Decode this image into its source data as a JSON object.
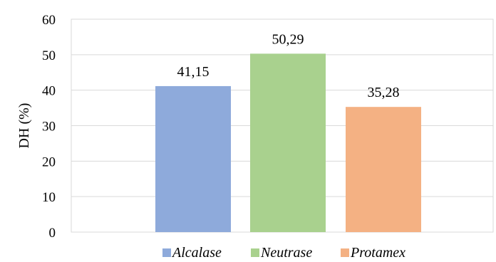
{
  "chart_data": {
    "type": "bar",
    "categories": [
      "Alcalase",
      "Neutrase",
      "Protamex"
    ],
    "values": [
      41.15,
      50.29,
      35.28
    ],
    "data_labels": [
      "41,15",
      "50,29",
      "35,28"
    ],
    "colors": [
      "#8eaadb",
      "#a9d18e",
      "#f4b183"
    ],
    "title": "",
    "xlabel": "",
    "ylabel": "DH (%)",
    "ylim": [
      0,
      60
    ],
    "yticks": [
      0,
      10,
      20,
      30,
      40,
      50,
      60
    ],
    "grid": true,
    "legend": {
      "placement": "bottom",
      "entries": [
        "Alcalase",
        "Neutrase",
        "Protamex"
      ]
    }
  }
}
